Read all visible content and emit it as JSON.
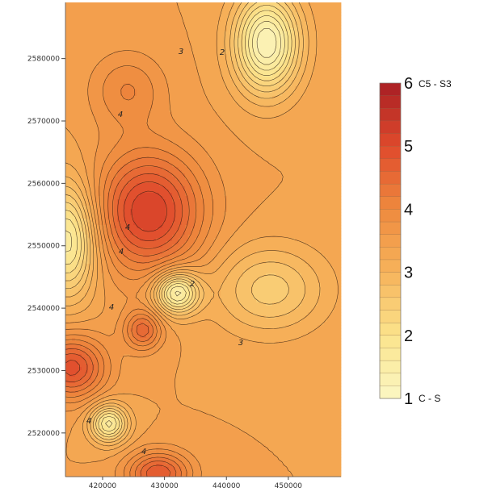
{
  "chart_data": {
    "type": "heatmap",
    "title": "",
    "xlabel": "",
    "ylabel": "",
    "x_ticks": [
      420000,
      430000,
      440000,
      450000
    ],
    "y_ticks": [
      2520000,
      2530000,
      2540000,
      2550000,
      2560000,
      2570000,
      2580000
    ],
    "xlim": [
      414000,
      458500
    ],
    "ylim": [
      2513000,
      2589000
    ],
    "colorbar": {
      "range": [
        1,
        6
      ],
      "ticks": [
        1,
        2,
        3,
        4,
        5,
        6
      ],
      "levels": 25,
      "max_label": "C5 - S3",
      "min_label": "C - S",
      "colors": [
        "#fbf7c4",
        "#fbe48c",
        "#f7b35b",
        "#ee8a3e",
        "#df4a2c",
        "#a91f24"
      ]
    },
    "contour_labels": [
      "2",
      "3",
      "4",
      "4",
      "4",
      "4",
      "4",
      "2",
      "3",
      "4"
    ],
    "field": {
      "base": 3.4,
      "features": [
        {
          "kind": "low",
          "x": 446500,
          "y": 2582500,
          "value": 1.2,
          "radius_x": 5200,
          "radius_y": 7800
        },
        {
          "kind": "high",
          "x": 427500,
          "y": 2555500,
          "value": 5.2,
          "radius_x": 8500,
          "radius_y": 9500
        },
        {
          "kind": "low",
          "x": 432000,
          "y": 2542500,
          "value": 1.4,
          "radius_x": 3600,
          "radius_y": 3400
        },
        {
          "kind": "low",
          "x": 414500,
          "y": 2551000,
          "value": 1.6,
          "radius_x": 4500,
          "radius_y": 9000
        },
        {
          "kind": "high",
          "x": 415000,
          "y": 2530500,
          "value": 4.9,
          "radius_x": 5500,
          "radius_y": 5000
        },
        {
          "kind": "high",
          "x": 426500,
          "y": 2536500,
          "value": 4.5,
          "radius_x": 3000,
          "radius_y": 3200
        },
        {
          "kind": "low",
          "x": 421000,
          "y": 2521500,
          "value": 1.7,
          "radius_x": 3000,
          "radius_y": 3000
        },
        {
          "kind": "high",
          "x": 429000,
          "y": 2513500,
          "value": 4.8,
          "radius_x": 5000,
          "radius_y": 3500
        },
        {
          "kind": "high",
          "x": 447000,
          "y": 2543000,
          "value": 2.5,
          "radius_x": 9000,
          "radius_y": 7000
        },
        {
          "kind": "high",
          "x": 424000,
          "y": 2575000,
          "value": 4.0,
          "radius_x": 6000,
          "radius_y": 6000
        }
      ]
    }
  }
}
